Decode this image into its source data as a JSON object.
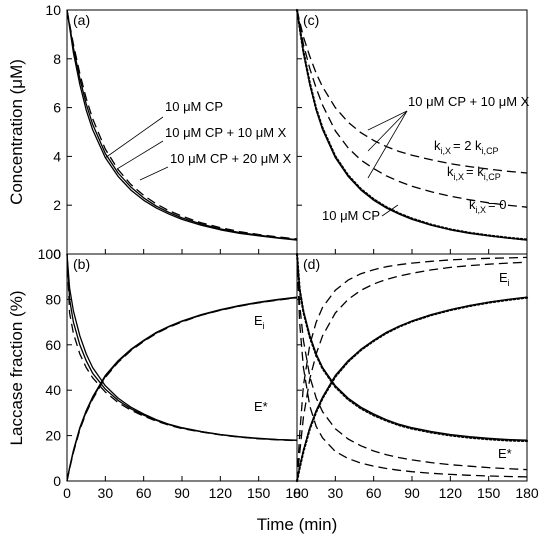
{
  "chart_data": [
    {
      "type": "line",
      "panel_label": "(a)",
      "xlim": [
        0,
        180
      ],
      "ylim": [
        0,
        10
      ],
      "y_ticks": [
        0,
        2,
        4,
        6,
        8,
        10
      ],
      "ylabel": "Concentration (μM)",
      "series": [
        {
          "name": "10 μM CP",
          "style": "solid",
          "x": [
            0,
            5,
            10,
            15,
            20,
            30,
            40,
            50,
            60,
            70,
            80,
            90,
            105,
            120,
            135,
            150,
            165,
            180
          ],
          "values": [
            10,
            8.25,
            6.95,
            5.9,
            5.1,
            3.95,
            3.18,
            2.62,
            2.2,
            1.88,
            1.63,
            1.42,
            1.18,
            0.99,
            0.85,
            0.74,
            0.65,
            0.57
          ]
        },
        {
          "name": "10 μM CP + 10 μM X",
          "style": "solid",
          "x": [
            0,
            5,
            10,
            15,
            20,
            30,
            40,
            50,
            60,
            70,
            80,
            90,
            105,
            120,
            135,
            150,
            165,
            180
          ],
          "values": [
            10,
            8.45,
            7.2,
            6.15,
            5.32,
            4.12,
            3.32,
            2.74,
            2.3,
            1.96,
            1.7,
            1.48,
            1.23,
            1.03,
            0.88,
            0.77,
            0.67,
            0.59
          ]
        },
        {
          "name": "10 μM CP + 20 μM X",
          "style": "dash",
          "x": [
            0,
            5,
            10,
            15,
            20,
            30,
            40,
            50,
            60,
            70,
            80,
            90,
            105,
            120,
            135,
            150,
            165,
            180
          ],
          "values": [
            10,
            8.6,
            7.4,
            6.38,
            5.55,
            4.3,
            3.46,
            2.85,
            2.4,
            2.05,
            1.77,
            1.55,
            1.28,
            1.08,
            0.92,
            0.8,
            0.7,
            0.62
          ]
        }
      ]
    },
    {
      "type": "line",
      "panel_label": "(c)",
      "xlim": [
        0,
        180
      ],
      "ylim": [
        0,
        10
      ],
      "y_ticks": [
        0,
        2,
        4,
        6,
        8,
        10
      ],
      "series": [
        {
          "name": "10 μM CP",
          "style": "solid",
          "x": [
            0,
            5,
            10,
            15,
            20,
            30,
            40,
            50,
            60,
            70,
            80,
            90,
            105,
            120,
            135,
            150,
            165,
            180
          ],
          "values": [
            10,
            8.25,
            6.95,
            5.9,
            5.1,
            3.95,
            3.18,
            2.62,
            2.2,
            1.88,
            1.63,
            1.42,
            1.18,
            0.99,
            0.85,
            0.74,
            0.65,
            0.57
          ]
        },
        {
          "name": "k_i,X = 0",
          "style": "dot",
          "x": [
            0,
            5,
            10,
            15,
            20,
            30,
            40,
            50,
            60,
            70,
            80,
            90,
            105,
            120,
            135,
            150,
            165,
            180
          ],
          "values": [
            10,
            8.3,
            7.0,
            5.95,
            5.15,
            4.0,
            3.22,
            2.66,
            2.24,
            1.92,
            1.66,
            1.45,
            1.2,
            1.01,
            0.87,
            0.76,
            0.67,
            0.59
          ]
        },
        {
          "name": "k_i,X = k_i,CP",
          "style": "dash",
          "x": [
            0,
            5,
            10,
            15,
            20,
            30,
            40,
            50,
            60,
            70,
            80,
            90,
            105,
            120,
            135,
            150,
            165,
            180
          ],
          "values": [
            10,
            8.6,
            7.6,
            6.8,
            6.1,
            5.05,
            4.35,
            3.85,
            3.5,
            3.2,
            2.97,
            2.78,
            2.55,
            2.37,
            2.22,
            2.1,
            2.0,
            1.92
          ]
        },
        {
          "name": "k_i,X = 2 k_i,CP",
          "style": "dash",
          "x": [
            0,
            5,
            10,
            15,
            20,
            30,
            40,
            50,
            60,
            70,
            80,
            90,
            105,
            120,
            135,
            150,
            165,
            180
          ],
          "values": [
            10,
            8.9,
            8.1,
            7.4,
            6.85,
            6.0,
            5.4,
            4.97,
            4.65,
            4.4,
            4.2,
            4.05,
            3.86,
            3.7,
            3.58,
            3.48,
            3.39,
            3.32
          ]
        }
      ]
    },
    {
      "type": "line",
      "panel_label": "(b)",
      "xlim": [
        0,
        180
      ],
      "ylim": [
        0,
        100
      ],
      "x_ticks": [
        0,
        30,
        60,
        90,
        120,
        150,
        180
      ],
      "y_ticks": [
        0,
        20,
        40,
        60,
        80,
        100
      ],
      "xlabel": "Time (min)",
      "ylabel": "Laccase fraction (%)",
      "series": [
        {
          "name": "E_i (10 μM CP)",
          "style": "solid",
          "x": [
            0,
            2,
            5,
            10,
            15,
            20,
            30,
            40,
            50,
            60,
            70,
            80,
            90,
            105,
            120,
            135,
            150,
            165,
            180
          ],
          "values": [
            0,
            6,
            13.5,
            23.5,
            31,
            37,
            46.5,
            53,
            58,
            62,
            65.5,
            68.2,
            70.5,
            73.3,
            75.5,
            77.3,
            78.8,
            80,
            81
          ]
        },
        {
          "name": "E_i (+10 μM X)",
          "style": "solid",
          "x": [
            0,
            2,
            5,
            10,
            15,
            20,
            30,
            40,
            50,
            60,
            70,
            80,
            90,
            105,
            120,
            135,
            150,
            165,
            180
          ],
          "values": [
            0,
            5.7,
            13,
            23,
            30.5,
            36.5,
            46,
            52.6,
            57.7,
            61.7,
            65.2,
            68,
            70.3,
            73.1,
            75.3,
            77.1,
            78.6,
            79.8,
            80.8
          ]
        },
        {
          "name": "E_i (+20 μM X)",
          "style": "dash",
          "x": [
            0,
            2,
            5,
            10,
            15,
            20,
            30,
            40,
            50,
            60,
            70,
            80,
            90,
            105,
            120,
            135,
            150,
            165,
            180
          ],
          "values": [
            0,
            5.4,
            12.5,
            22.5,
            30,
            36,
            45.6,
            52.3,
            57.4,
            61.5,
            65,
            67.8,
            70.1,
            73,
            75.2,
            77,
            78.5,
            79.7,
            80.7
          ]
        },
        {
          "name": "E* (10 μM CP)",
          "style": "solid",
          "x": [
            0,
            2,
            5,
            10,
            15,
            20,
            30,
            40,
            50,
            60,
            70,
            80,
            90,
            105,
            120,
            135,
            150,
            165,
            180
          ],
          "values": [
            100,
            85,
            75,
            64,
            56,
            50,
            42,
            36.5,
            32.5,
            29.5,
            27,
            25,
            23.5,
            21.8,
            20.5,
            19.5,
            18.8,
            18.3,
            18
          ]
        },
        {
          "name": "E* (+10 μM X)",
          "style": "solid",
          "x": [
            0,
            2,
            5,
            10,
            15,
            20,
            30,
            40,
            50,
            60,
            70,
            80,
            90,
            105,
            120,
            135,
            150,
            165,
            180
          ],
          "values": [
            100,
            80,
            70,
            60,
            53,
            47.5,
            40.5,
            35.5,
            31.8,
            29,
            26.7,
            24.8,
            23.3,
            21.7,
            20.4,
            19.4,
            18.7,
            18.2,
            17.9
          ]
        },
        {
          "name": "E* (+20 μM X)",
          "style": "dash",
          "x": [
            0,
            2,
            5,
            10,
            15,
            20,
            30,
            40,
            50,
            60,
            70,
            80,
            90,
            105,
            120,
            135,
            150,
            165,
            180
          ],
          "values": [
            100,
            74,
            65,
            56,
            50,
            45.5,
            39.2,
            34.6,
            31.2,
            28.6,
            26.4,
            24.6,
            23.1,
            21.6,
            20.3,
            19.3,
            18.6,
            18.1,
            17.8
          ]
        }
      ],
      "annotations": [
        "E_i",
        "E*"
      ]
    },
    {
      "type": "line",
      "panel_label": "(d)",
      "xlim": [
        0,
        180
      ],
      "ylim": [
        0,
        100
      ],
      "x_ticks": [
        0,
        30,
        60,
        90,
        120,
        150,
        180
      ],
      "y_ticks": [
        0,
        20,
        40,
        60,
        80,
        100
      ],
      "series": [
        {
          "name": "E_i (10 μM CP)",
          "style": "solid",
          "x": [
            0,
            2,
            5,
            10,
            15,
            20,
            30,
            40,
            50,
            60,
            70,
            80,
            90,
            105,
            120,
            135,
            150,
            165,
            180
          ],
          "values": [
            0,
            6,
            13.5,
            23.5,
            31,
            37,
            46.5,
            53,
            58,
            62,
            65.5,
            68.2,
            70.5,
            73.3,
            75.5,
            77.3,
            78.8,
            80,
            81
          ]
        },
        {
          "name": "E_i (k_i,X = 0)",
          "style": "dot",
          "x": [
            0,
            2,
            5,
            10,
            15,
            20,
            30,
            40,
            50,
            60,
            70,
            80,
            90,
            105,
            120,
            135,
            150,
            165,
            180
          ],
          "values": [
            0,
            5.7,
            13,
            23,
            30.5,
            36.5,
            46,
            52.6,
            57.7,
            61.7,
            65.2,
            68,
            70.3,
            73.1,
            75.3,
            77.1,
            78.6,
            79.8,
            80.8
          ]
        },
        {
          "name": "E_i (k_i,X = k_i,CP)",
          "style": "dash",
          "x": [
            0,
            2,
            5,
            10,
            15,
            20,
            30,
            40,
            50,
            60,
            70,
            80,
            90,
            105,
            120,
            135,
            150,
            165,
            180
          ],
          "values": [
            0,
            12,
            28,
            45,
            56,
            64,
            74,
            80,
            84,
            86.8,
            88.8,
            90.3,
            91.5,
            93,
            94.1,
            94.9,
            95.5,
            96,
            96.4
          ]
        },
        {
          "name": "E_i (k_i,X = 2 k_i,CP)",
          "style": "dash",
          "x": [
            0,
            2,
            5,
            10,
            15,
            20,
            30,
            40,
            50,
            60,
            70,
            80,
            90,
            105,
            120,
            135,
            150,
            165,
            180
          ],
          "values": [
            0,
            20,
            42,
            60,
            70,
            76.5,
            84,
            88.5,
            91.3,
            93.1,
            94.4,
            95.3,
            96,
            96.8,
            97.4,
            97.8,
            98.1,
            98.3,
            98.5
          ]
        },
        {
          "name": "E* (10 μM CP)",
          "style": "solid",
          "x": [
            0,
            2,
            5,
            10,
            15,
            20,
            30,
            40,
            50,
            60,
            70,
            80,
            90,
            105,
            120,
            135,
            150,
            165,
            180
          ],
          "values": [
            100,
            85,
            75,
            64,
            56,
            50,
            42,
            36.5,
            32.5,
            29.5,
            27,
            25,
            23.5,
            21.8,
            20.5,
            19.5,
            18.8,
            18.3,
            18
          ]
        },
        {
          "name": "E* (k_i,X = 0)",
          "style": "dot",
          "x": [
            0,
            2,
            5,
            10,
            15,
            20,
            30,
            40,
            50,
            60,
            70,
            80,
            90,
            105,
            120,
            135,
            150,
            165,
            180
          ],
          "values": [
            100,
            84.5,
            74.5,
            63.5,
            55.5,
            49.5,
            41.5,
            36,
            32,
            29,
            26.6,
            24.6,
            23.1,
            21.4,
            20.1,
            19.1,
            18.4,
            17.9,
            17.6
          ]
        },
        {
          "name": "E* (k_i,X = k_i,CP)",
          "style": "dash",
          "x": [
            0,
            2,
            5,
            10,
            15,
            20,
            30,
            40,
            50,
            60,
            70,
            80,
            90,
            105,
            120,
            135,
            150,
            165,
            180
          ],
          "values": [
            100,
            78,
            62,
            46,
            36.5,
            30.5,
            23,
            18.5,
            15.5,
            13.2,
            11.6,
            10.3,
            9.3,
            8.1,
            7.2,
            6.5,
            5.9,
            5.4,
            5
          ]
        },
        {
          "name": "E* (k_i,X = 2 k_i,CP)",
          "style": "dash",
          "x": [
            0,
            2,
            5,
            10,
            15,
            20,
            30,
            40,
            50,
            60,
            70,
            80,
            90,
            105,
            120,
            135,
            150,
            165,
            180
          ],
          "values": [
            100,
            70,
            50,
            33,
            24,
            19,
            13,
            9.9,
            7.9,
            6.5,
            5.5,
            4.7,
            4.1,
            3.4,
            2.9,
            2.5,
            2.2,
            2,
            1.8
          ]
        }
      ],
      "annotations": [
        "E_i",
        "E*"
      ]
    }
  ],
  "labels": {
    "cp": "10 μM CP",
    "cp_x10": "10 μM CP + 10 μM X",
    "cp_x20": "10 μM CP + 20 μM X",
    "k_prefix": "k",
    "k_sub": "i,X",
    "k_eq_2": "= 2 k",
    "k_eq_1": "= k",
    "k_eq_0": "= 0",
    "k_sub_cp": "i,CP",
    "ei": "E",
    "ei_sub": "i",
    "estar": "E*"
  }
}
